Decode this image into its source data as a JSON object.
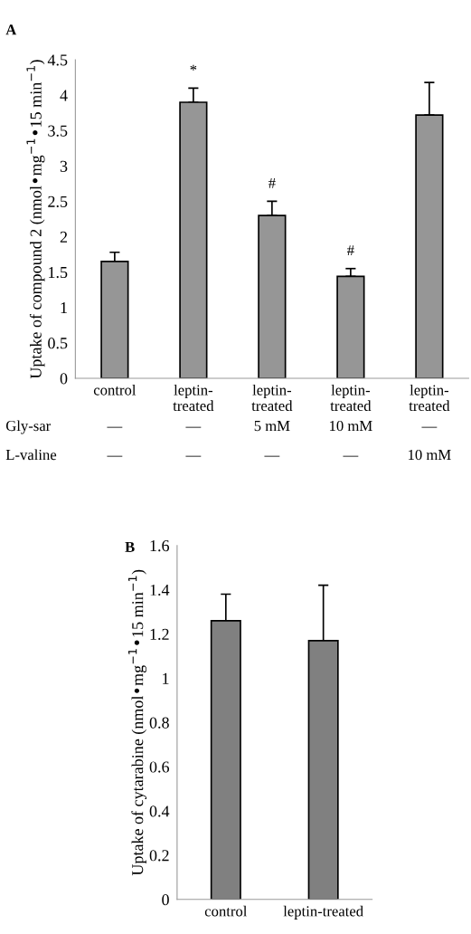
{
  "chart_data": [
    {
      "type": "bar",
      "title": "A",
      "ylabel": "Uptake of compound 2 (nmol•mg$^{−1}$•15 min$^{−1}$)",
      "categories": [
        "control",
        "leptin-\ntreated",
        "leptin-\ntreated",
        "leptin-\ntreated",
        "leptin-\ntreated"
      ],
      "values": [
        1.65,
        3.9,
        2.3,
        1.44,
        3.72
      ],
      "color": "#969696",
      "errors": [
        [
          1.65,
          1.78
        ],
        [
          3.9,
          4.1
        ],
        [
          2.3,
          2.5
        ],
        [
          1.44,
          1.55
        ],
        [
          3.72,
          4.18
        ]
      ],
      "value_labels": [
        null,
        "*",
        "#",
        "#",
        null
      ],
      "ylim": [
        0,
        4.5
      ],
      "yticks": [
        0,
        0.5,
        1,
        1.5,
        2,
        2.5,
        3,
        3.5,
        4,
        4.5
      ],
      "annotations": [
        "Gly-sar",
        "—",
        "—",
        "5 mM",
        "10 mM",
        "—",
        "L-valine",
        "—",
        "—",
        "—",
        "—",
        "10 mM"
      ]
    },
    {
      "type": "bar",
      "title": "B",
      "ylabel": "Uptake of cytarabine (nmol•mg$^{−1}$•15 min$^{−1}$)",
      "categories": [
        "control",
        "leptin-treated"
      ],
      "values": [
        1.26,
        1.17
      ],
      "color": "#808080",
      "errors": [
        [
          1.26,
          1.38
        ],
        [
          1.17,
          1.42
        ]
      ],
      "ylim": [
        0,
        1.6
      ],
      "yticks": [
        0,
        0.2,
        0.4,
        0.6,
        0.8,
        1,
        1.2,
        1.4,
        1.6
      ]
    }
  ]
}
